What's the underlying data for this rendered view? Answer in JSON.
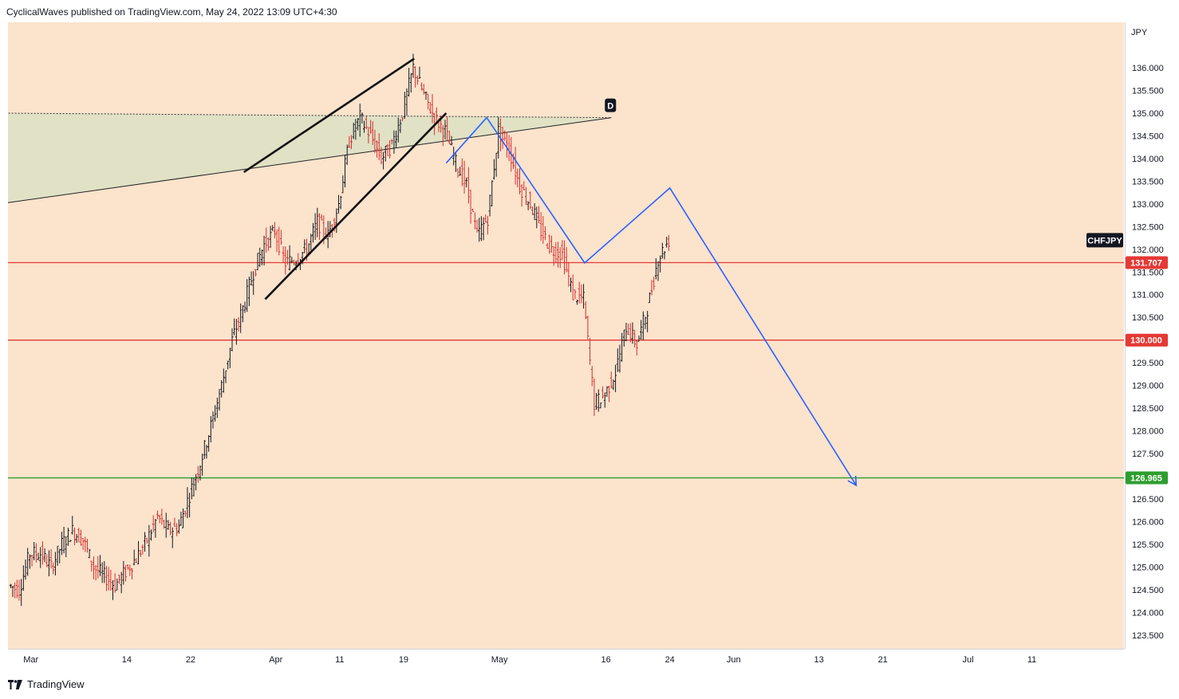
{
  "header": {
    "text": "CyclicalWaves published on TradingView.com, May 24, 2022 13:09 UTC+4:30"
  },
  "footer": {
    "brand": "TradingView"
  },
  "chart_data": {
    "type": "candlestick",
    "symbol_label": "CHFJPY",
    "currency": "JPY",
    "ylim": [
      123.2,
      137.0
    ],
    "y_ticks": [
      "123.500",
      "124.000",
      "124.500",
      "125.000",
      "125.500",
      "126.000",
      "126.500",
      "127.000",
      "127.500",
      "128.000",
      "128.500",
      "129.000",
      "129.500",
      "130.000",
      "130.500",
      "131.000",
      "131.500",
      "132.000",
      "132.500",
      "133.000",
      "133.500",
      "134.000",
      "134.500",
      "135.000",
      "135.500",
      "136.000"
    ],
    "x_ticks": [
      {
        "label": "Mar",
        "bar": 2
      },
      {
        "label": "14",
        "bar": 11
      },
      {
        "label": "22",
        "bar": 17
      },
      {
        "label": "Apr",
        "bar": 25
      },
      {
        "label": "11",
        "bar": 31
      },
      {
        "label": "19",
        "bar": 37
      },
      {
        "label": "May",
        "bar": 46
      },
      {
        "label": "16",
        "bar": 56
      },
      {
        "label": "24",
        "bar": 62
      },
      {
        "label": "Jun",
        "bar": 68
      },
      {
        "label": "13",
        "bar": 76
      },
      {
        "label": "21",
        "bar": 82
      },
      {
        "label": "Jul",
        "bar": 90
      },
      {
        "label": "11",
        "bar": 96
      }
    ],
    "closes": [
      124.6,
      124.5,
      125.3,
      125.3,
      125.0,
      125.5,
      125.8,
      125.6,
      125.0,
      124.8,
      124.6,
      124.9,
      125.2,
      125.6,
      126.1,
      125.8,
      125.9,
      126.6,
      127.3,
      128.1,
      129.0,
      130.0,
      130.7,
      131.5,
      132.1,
      132.4,
      131.7,
      131.8,
      132.0,
      132.6,
      132.3,
      133.0,
      134.4,
      134.9,
      134.5,
      134.0,
      134.3,
      135.0,
      136.0,
      135.4,
      134.9,
      134.6,
      133.9,
      133.4,
      132.3,
      132.7,
      134.6,
      134.2,
      133.4,
      133.0,
      132.4,
      132.0,
      131.9,
      131.0,
      130.9,
      128.6,
      128.8,
      129.3,
      130.3,
      129.9,
      130.7,
      131.8,
      132.2
    ],
    "horizontal_levels": [
      {
        "value": 131.707,
        "label": "131.707",
        "color": "#e53935"
      },
      {
        "value": 130.0,
        "label": "130.000",
        "color": "#e53935"
      },
      {
        "value": 126.965,
        "label": "126.965",
        "color": "#2e9e2e"
      }
    ],
    "annotations": {
      "point_label": "D",
      "wedge_upper": [
        [
          22,
          133.7
        ],
        [
          38,
          136.2
        ]
      ],
      "wedge_lower": [
        [
          24,
          130.9
        ],
        [
          41,
          135.0
        ]
      ],
      "channel_top": [
        [
          -1,
          135.0
        ],
        [
          56.5,
          134.9
        ]
      ],
      "channel_bottom": [
        [
          -1,
          133.0
        ],
        [
          56.5,
          134.9
        ]
      ],
      "projection": [
        [
          41,
          133.9
        ],
        [
          44.8,
          134.9
        ],
        [
          54,
          131.7
        ],
        [
          62,
          133.35
        ],
        [
          79.5,
          126.8
        ]
      ]
    }
  }
}
